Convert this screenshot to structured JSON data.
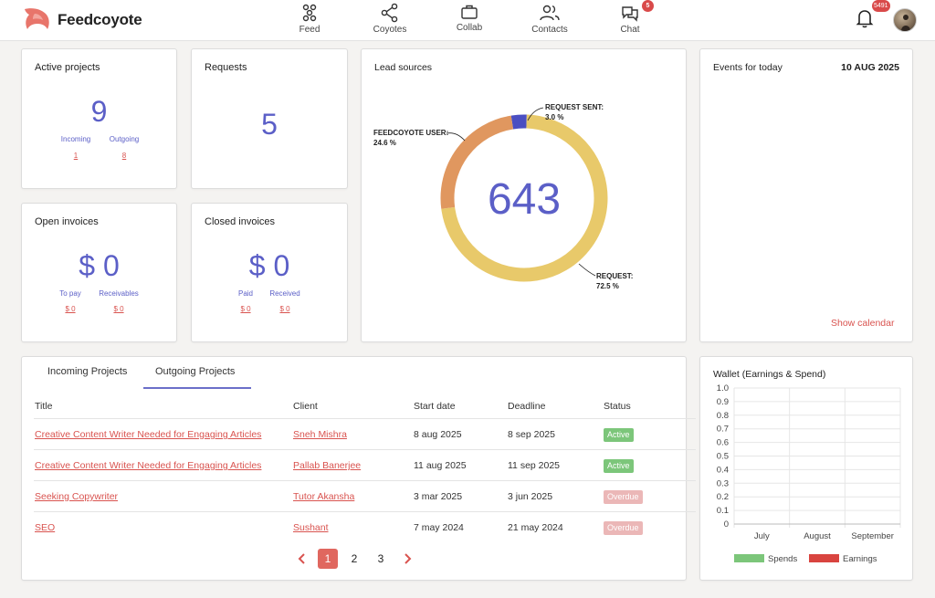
{
  "brand": {
    "name": "Feedcoyote"
  },
  "nav": [
    {
      "label": "Feed",
      "icon": "feed-icon"
    },
    {
      "label": "Coyotes",
      "icon": "share-network-icon"
    },
    {
      "label": "Collab",
      "icon": "briefcase-icon"
    },
    {
      "label": "Contacts",
      "icon": "people-icon"
    },
    {
      "label": "Chat",
      "icon": "chat-icon",
      "badge": "5"
    }
  ],
  "notifications": {
    "badge": "5491",
    "icon": "bell-icon"
  },
  "active_projects": {
    "title": "Active projects",
    "value": "9",
    "incoming_label": "Incoming",
    "outgoing_label": "Outgoing",
    "incoming_value": "1",
    "outgoing_value": "8"
  },
  "requests": {
    "title": "Requests",
    "value": "5"
  },
  "open_invoices": {
    "title": "Open invoices",
    "currency": "$",
    "value": "0",
    "to_pay_label": "To pay",
    "receivables_label": "Receivables",
    "to_pay_value": "$ 0",
    "receivables_value": "$ 0"
  },
  "closed_invoices": {
    "title": "Closed invoices",
    "currency": "$",
    "value": "0",
    "paid_label": "Paid",
    "received_label": "Received",
    "paid_value": "$ 0",
    "received_value": "$ 0"
  },
  "lead_sources": {
    "title": "Lead sources",
    "total": "643",
    "segments": [
      {
        "label": "REQUEST SENT:",
        "pct_text": "3.0 %",
        "percent": 3.0,
        "color": "#4b4fc2"
      },
      {
        "label": "REQUEST:",
        "pct_text": "72.5 %",
        "percent": 72.5,
        "color": "#e8c96a"
      },
      {
        "label": "FEEDCOYOTE USER:",
        "pct_text": "24.6 %",
        "percent": 24.6,
        "color": "#e0975f"
      }
    ]
  },
  "events": {
    "title": "Events for today",
    "date": "10 AUG 2025",
    "show_calendar": "Show calendar"
  },
  "projects": {
    "tabs": [
      "Incoming Projects",
      "Outgoing Projects"
    ],
    "active_tab": 1,
    "headers": [
      "Title",
      "Client",
      "Start date",
      "Deadline",
      "Status"
    ],
    "rows": [
      {
        "title": "Creative Content Writer Needed for Engaging Articles",
        "client": "Sneh Mishra",
        "start": "8 aug 2025",
        "deadline": "8 sep 2025",
        "status": "Active"
      },
      {
        "title": "Creative Content Writer Needed for Engaging Articles",
        "client": "Pallab Banerjee",
        "start": "11 aug 2025",
        "deadline": "11 sep 2025",
        "status": "Active"
      },
      {
        "title": "Seeking Copywriter",
        "client": "Tutor Akansha",
        "start": "3 mar 2025",
        "deadline": "3 jun 2025",
        "status": "Overdue"
      },
      {
        "title": "SEO",
        "client": "Sushant",
        "start": "7 may 2024",
        "deadline": "21 may 2024",
        "status": "Overdue"
      }
    ],
    "pages": [
      "1",
      "2",
      "3"
    ],
    "current_page": "1",
    "status_colors": {
      "Active": "#7cc67a",
      "Overdue": "#ebb7b7"
    }
  },
  "wallet": {
    "title": "Wallet (Earnings & Spend)"
  },
  "chart_data": {
    "type": "bar",
    "title": "Wallet (Earnings & Spend)",
    "categories": [
      "July",
      "August",
      "September"
    ],
    "series": [
      {
        "name": "Spends",
        "values": [
          0,
          0,
          0
        ],
        "color": "#7cc67a"
      },
      {
        "name": "Earnings",
        "values": [
          0,
          0,
          0
        ],
        "color": "#d9443f"
      }
    ],
    "yticks": [
      "1.0",
      "0.9",
      "0.8",
      "0.7",
      "0.6",
      "0.5",
      "0.4",
      "0.3",
      "0.2",
      "0.1",
      "0"
    ],
    "ylim": [
      0,
      1.0
    ],
    "grid": true,
    "legend": "bottom"
  }
}
